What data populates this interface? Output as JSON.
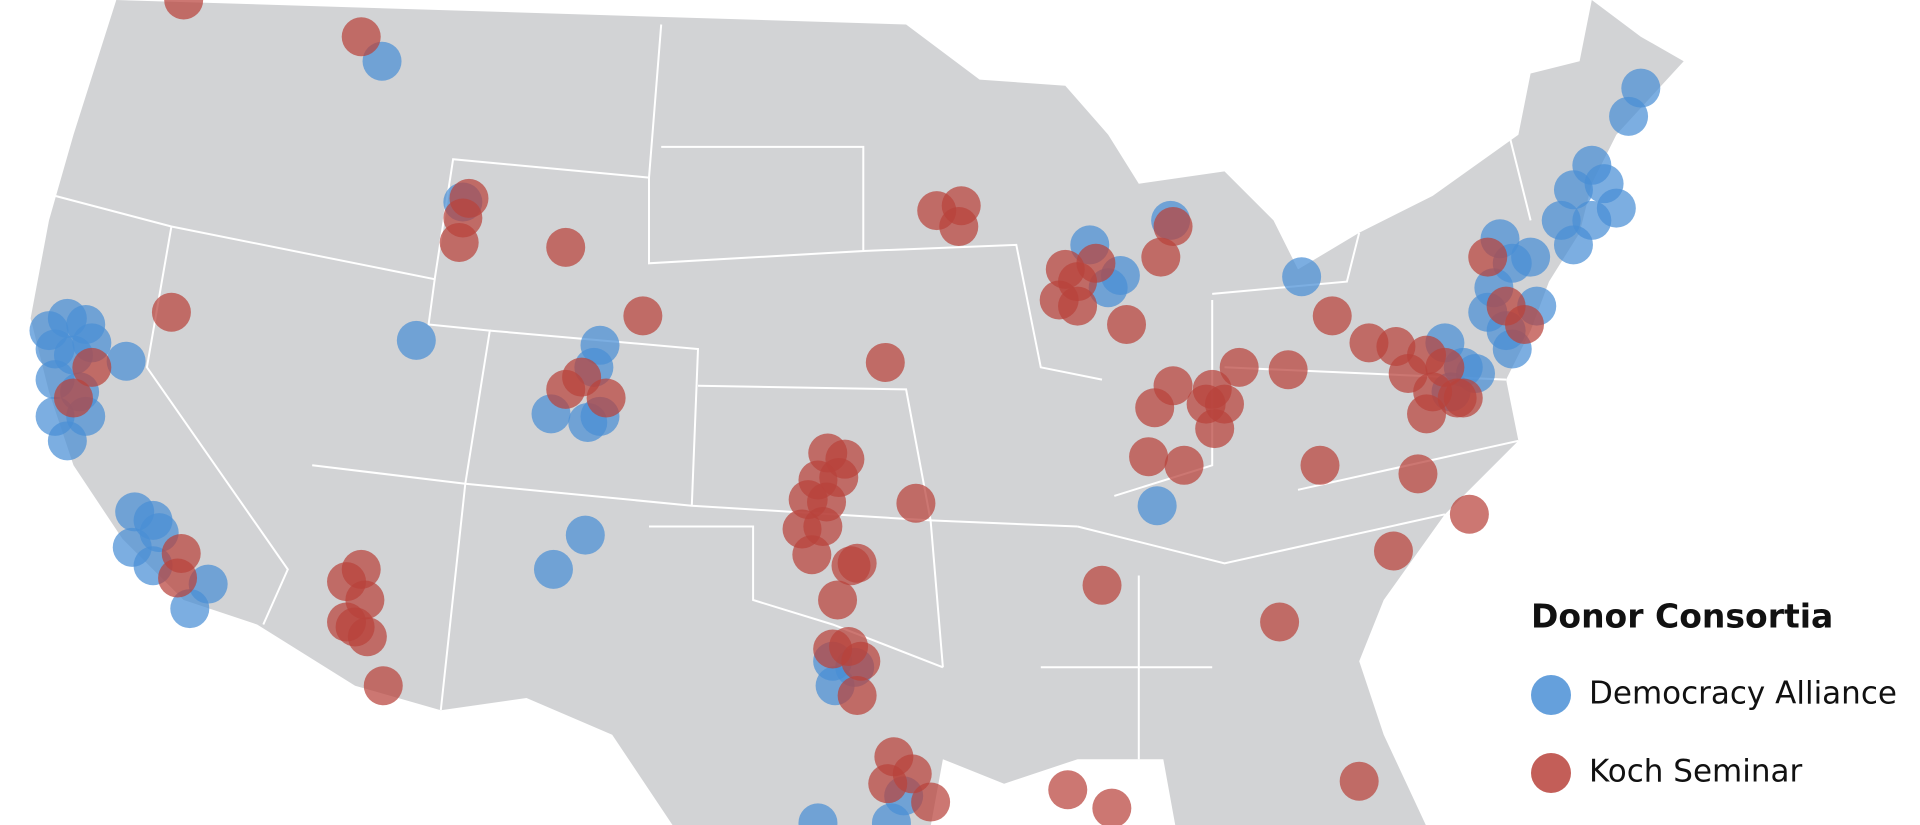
{
  "legend": {
    "title": "Donor Consortia",
    "items": [
      {
        "label": "Democracy Alliance",
        "color": "#4a8fd6"
      },
      {
        "label": "Koch Seminar",
        "color": "#b9423b"
      }
    ]
  }
}
